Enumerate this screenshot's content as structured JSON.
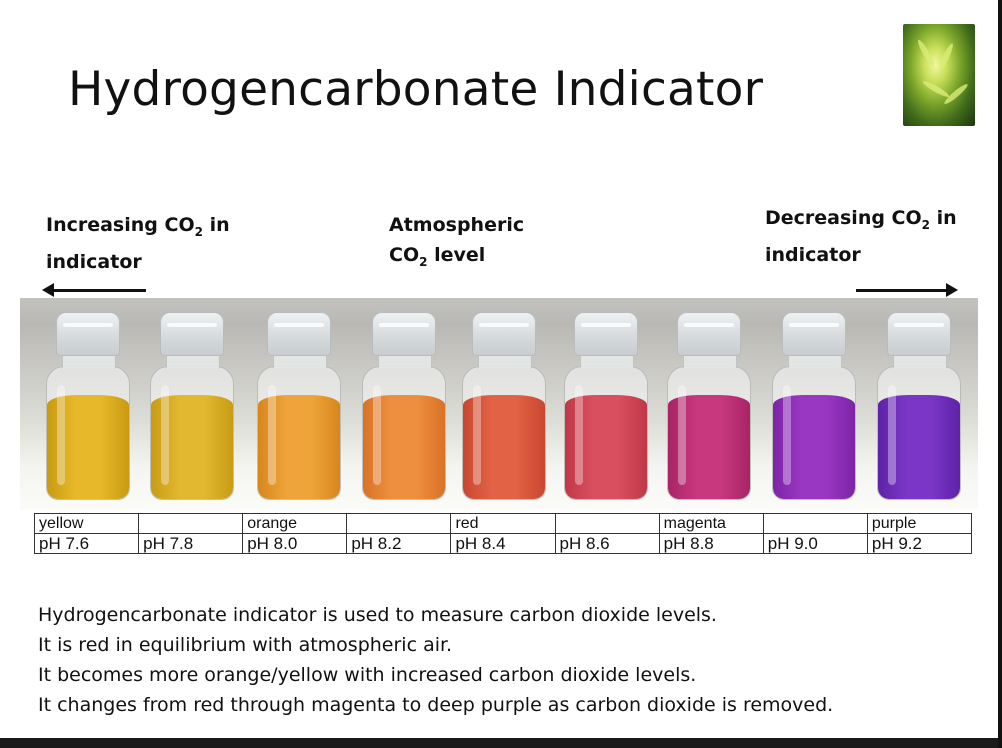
{
  "title": "Hydrogencarbonate Indicator",
  "labels": {
    "increasing": {
      "line1_pre": "Increasing CO",
      "line1_sub": "2",
      "line1_post": " in",
      "line2": "indicator"
    },
    "atmospheric": {
      "line1": "Atmospheric",
      "line2_pre": "CO",
      "line2_sub": "2",
      "line2_post": " level"
    },
    "decreasing": {
      "line1_pre": "Decreasing CO",
      "line1_sub": "2",
      "line1_post": " in",
      "line2": "indicator"
    }
  },
  "vials": [
    {
      "color_top": "#e7b92a",
      "color_bottom": "#c99a10"
    },
    {
      "color_top": "#e2b830",
      "color_bottom": "#c89c14"
    },
    {
      "color_top": "#eea43a",
      "color_bottom": "#d8861c"
    },
    {
      "color_top": "#ee8f40",
      "color_bottom": "#d97226"
    },
    {
      "color_top": "#e16245",
      "color_bottom": "#c9472f"
    },
    {
      "color_top": "#d94f60",
      "color_bottom": "#c03848"
    },
    {
      "color_top": "#c8387f",
      "color_bottom": "#a82465"
    },
    {
      "color_top": "#9a37c2",
      "color_bottom": "#7c24a6"
    },
    {
      "color_top": "#7b36c8",
      "color_bottom": "#5d22a6"
    }
  ],
  "table": {
    "colors": [
      "yellow",
      "",
      "orange",
      "",
      "red",
      "",
      "magenta",
      "",
      "purple"
    ],
    "ph": [
      "pH 7.6",
      "pH 7.8",
      "pH 8.0",
      "pH 8.2",
      "pH 8.4",
      "pH 8.6",
      "pH 8.8",
      "pH 9.0",
      "pH 9.2"
    ]
  },
  "description": [
    "Hydrogencarbonate indicator is used to measure carbon dioxide levels.",
    "It is red in equilibrium with atmospheric air.",
    "It becomes more orange/yellow with increased carbon dioxide levels.",
    "It changes from red through magenta to deep purple as carbon dioxide is removed."
  ]
}
